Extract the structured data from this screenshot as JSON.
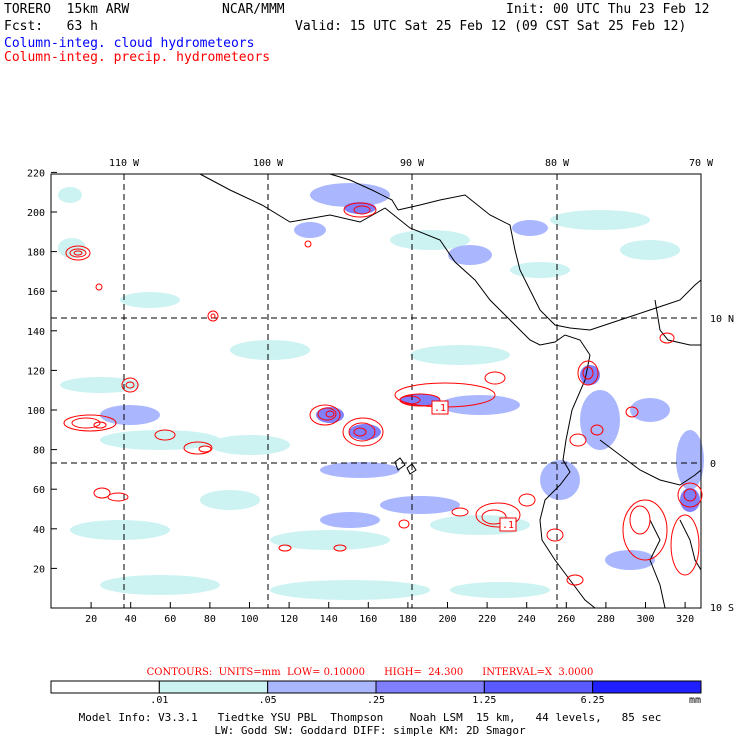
{
  "header": {
    "model_line": "TORERO  15km ARW",
    "org": "NCAR/MMM",
    "init": "Init: 00 UTC Thu 23 Feb 12",
    "fcst_line": "Fcst:   63 h",
    "valid": "Valid: 15 UTC Sat 25 Feb 12 (09 CST Sat 25 Feb 12)",
    "field1": "Column-integ. cloud hydrometeors",
    "field2": "Column-integ. precip. hydrometeors"
  },
  "colors": {
    "cloud_field": "#0000ff",
    "precip_field": "#ff0000",
    "coast": "#000000",
    "grid": "#000000"
  },
  "map": {
    "x_ticks": [
      "20",
      "40",
      "60",
      "80",
      "100",
      "120",
      "140",
      "160",
      "180",
      "200",
      "220",
      "240",
      "260",
      "280",
      "300",
      "320"
    ],
    "y_ticks": [
      "20",
      "40",
      "60",
      "80",
      "100",
      "120",
      "140",
      "160",
      "180",
      "200",
      "220"
    ],
    "lon_labels": [
      "110 W",
      "100 W",
      "90 W",
      "80 W",
      "70 W"
    ],
    "lat_labels": [
      "10 N",
      "0",
      "10 S"
    ],
    "contour_labels": [
      ".1",
      ".1"
    ]
  },
  "contours_info": "CONTOURS:  UNITS=mm  LOW= 0.10000      HIGH=  24.300      INTERVAL=X  3.0000",
  "colorbar": {
    "labels": [
      ".01",
      ".05",
      ".25",
      "1.25",
      "6.25"
    ],
    "unit": "mm",
    "colors": [
      "#ffffff",
      "#ccf2f2",
      "#aab7ff",
      "#7f7fff",
      "#5a5aff",
      "#1f1fff"
    ]
  },
  "footer": {
    "line1": "Model Info: V3.3.1   Tiedtke YSU PBL  Thompson    Noah LSM  15 km,   44 levels,   85 sec",
    "line2": "LW: Godd SW: Goddard DIFF: simple KM: 2D Smagor"
  }
}
